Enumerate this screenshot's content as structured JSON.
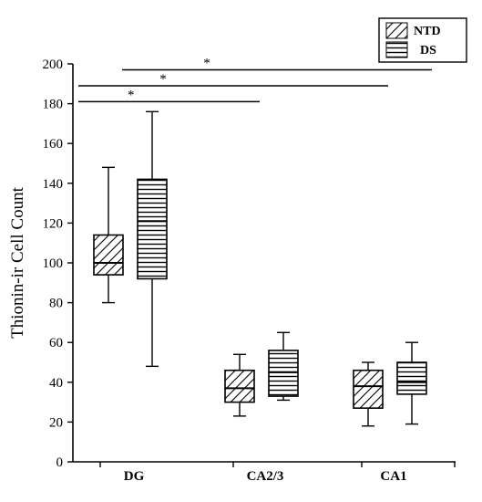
{
  "chart_data": {
    "type": "boxplot",
    "title": "",
    "xlabel": "",
    "ylabel": "Thionin-ir  Cell Count",
    "ylim": [
      0,
      200
    ],
    "yticks": [
      0,
      20,
      40,
      60,
      80,
      100,
      120,
      140,
      160,
      180,
      200
    ],
    "categories": [
      "DG",
      "CA2/3",
      "CA1"
    ],
    "legend_position": "top-right",
    "series": [
      {
        "name": "NTD",
        "pattern": "diagonal-hatch",
        "boxes": [
          {
            "category": "DG",
            "min": 80,
            "q1": 94,
            "median": 100,
            "q3": 114,
            "max": 148
          },
          {
            "category": "CA2/3",
            "min": 23,
            "q1": 30,
            "median": 37,
            "q3": 46,
            "max": 54
          },
          {
            "category": "CA1",
            "min": 18,
            "q1": 27,
            "median": 38,
            "q3": 46,
            "max": 50
          }
        ]
      },
      {
        "name": "DS",
        "pattern": "horizontal-lines",
        "boxes": [
          {
            "category": "DG",
            "min": 48,
            "q1": 92,
            "median": 121,
            "q3": 142,
            "max": 176
          },
          {
            "category": "CA2/3",
            "min": 31,
            "q1": 33,
            "median": 45,
            "q3": 56,
            "max": 65
          },
          {
            "category": "CA1",
            "min": 19,
            "q1": 34,
            "median": 40,
            "q3": 50,
            "max": 60
          }
        ]
      }
    ],
    "significance": [
      {
        "from": "DG NTD",
        "to": "CA2/3 NTD",
        "y": 181,
        "label": "*"
      },
      {
        "from": "DG NTD",
        "to": "CA1 NTD",
        "y": 189,
        "label": "*"
      },
      {
        "from": "DG DS",
        "to": "CA1 DS",
        "y": 197,
        "label": "*"
      }
    ]
  },
  "colors": {
    "ink": "#000000",
    "background": "#ffffff"
  }
}
